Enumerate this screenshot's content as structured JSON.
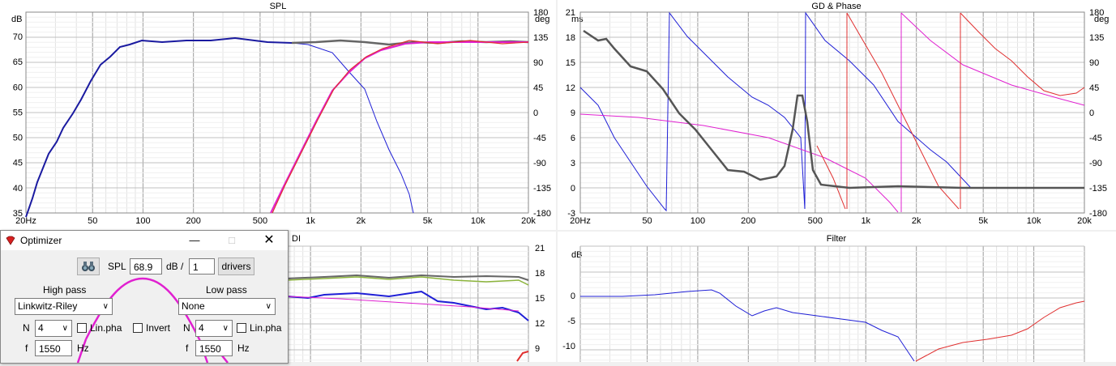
{
  "spl_panel": {
    "title": "SPL",
    "left_unit": "dB",
    "right_unit": "deg",
    "left_ticks": [
      "70",
      "65",
      "60",
      "55",
      "50",
      "45",
      "40",
      "35"
    ],
    "right_ticks": [
      "180",
      "135",
      "90",
      "45",
      "0",
      "-45",
      "-90",
      "-135",
      "-180"
    ],
    "x_ticks": [
      "20Hz",
      "50",
      "100",
      "200",
      "500",
      "1k",
      "2k",
      "5k",
      "10k",
      "20k"
    ]
  },
  "gd_panel": {
    "title": "GD & Phase",
    "left_unit": "ms",
    "right_unit": "deg",
    "left_ticks": [
      "21",
      "18",
      "15",
      "12",
      "9",
      "6",
      "3",
      "0",
      "-3"
    ],
    "right_ticks": [
      "180",
      "135",
      "90",
      "45",
      "0",
      "-45",
      "-90",
      "-135",
      "-180"
    ],
    "x_ticks": [
      "20Hz",
      "50",
      "100",
      "200",
      "500",
      "1k",
      "2k",
      "5k",
      "10k",
      "20k"
    ]
  },
  "di_panel": {
    "title": "DI",
    "right_ticks": [
      "21",
      "18",
      "15",
      "12",
      "9"
    ]
  },
  "filter_panel": {
    "title": "Filter",
    "left_unit": "dB",
    "left_ticks": [
      "0",
      "-5",
      "-10"
    ]
  },
  "optimizer": {
    "title": "Optimizer",
    "spl_label": "SPL",
    "spl_value": "68.9",
    "db_label": "dB /",
    "drivers_count": "1",
    "drivers_button": "drivers",
    "high_pass": {
      "label": "High pass",
      "type": "Linkwitz-Riley",
      "n_label": "N",
      "n_value": "4",
      "linpha_label": "Lin.pha",
      "invert_label": "Invert",
      "f_label": "f",
      "f_value": "1550",
      "hz_label": "Hz"
    },
    "low_pass": {
      "label": "Low pass",
      "type": "None",
      "n_label": "N",
      "n_value": "4",
      "linpha_label": "Lin.pha",
      "f_label": "f",
      "f_value": "1550",
      "hz_label": "Hz"
    },
    "minimize_icon": "minimize-icon",
    "maximize_icon": "maximize-icon",
    "close_icon": "close-icon"
  },
  "colors": {
    "blue": "#1f1fd6",
    "navy": "#1a1aa0",
    "magenta": "#e020d0",
    "red": "#e03030",
    "gray": "#666666",
    "olive": "#8cb43c"
  }
}
